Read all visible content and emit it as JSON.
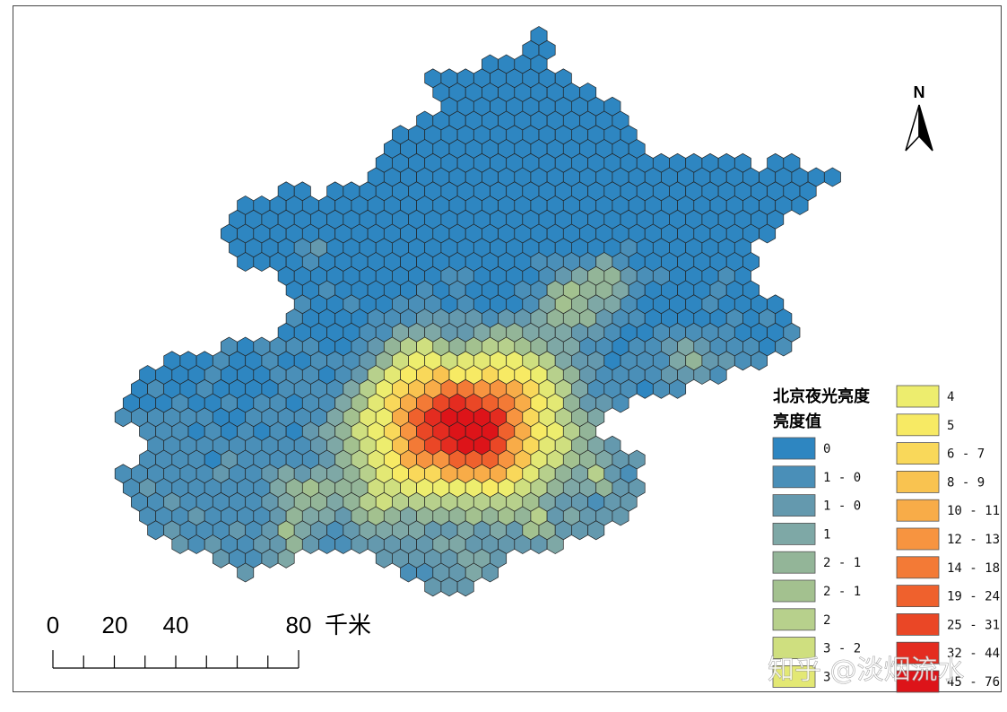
{
  "map": {
    "legend": {
      "title_line1": "北京夜光亮度",
      "title_line2": "亮度值",
      "classes": [
        {
          "label": "0",
          "color": "#2e86c1"
        },
        {
          "label": "1 - 0",
          "color": "#4a8fb8"
        },
        {
          "label": "1 - 0",
          "color": "#6499ae"
        },
        {
          "label": "1",
          "color": "#7ea8a6"
        },
        {
          "label": "2 - 1",
          "color": "#93b598"
        },
        {
          "label": "2 - 1",
          "color": "#a3c18f"
        },
        {
          "label": "2",
          "color": "#b7d08c"
        },
        {
          "label": "3 - 2",
          "color": "#cfdf7f"
        },
        {
          "label": "3",
          "color": "#e3e874"
        },
        {
          "label": "4",
          "color": "#eded6e"
        },
        {
          "label": "5",
          "color": "#f7ea64"
        },
        {
          "label": "6 - 7",
          "color": "#f9d85a"
        },
        {
          "label": "8 - 9",
          "color": "#f9c350"
        },
        {
          "label": "10 - 11",
          "color": "#f8ac48"
        },
        {
          "label": "12 - 13",
          "color": "#f79440"
        },
        {
          "label": "14 - 18",
          "color": "#f37a36"
        },
        {
          "label": "19 - 24",
          "color": "#ef612d"
        },
        {
          "label": "25 - 31",
          "color": "#ea4726"
        },
        {
          "label": "32 - 44",
          "color": "#e42c20"
        },
        {
          "label": "45 - 76",
          "color": "#dd1419"
        }
      ]
    },
    "scale_bar": {
      "ticks": [
        "0",
        "20",
        "40",
        "80"
      ],
      "unit": "千米"
    },
    "north_arrow": {
      "label": "N"
    },
    "watermark": "知乎 @淡烟流水"
  }
}
